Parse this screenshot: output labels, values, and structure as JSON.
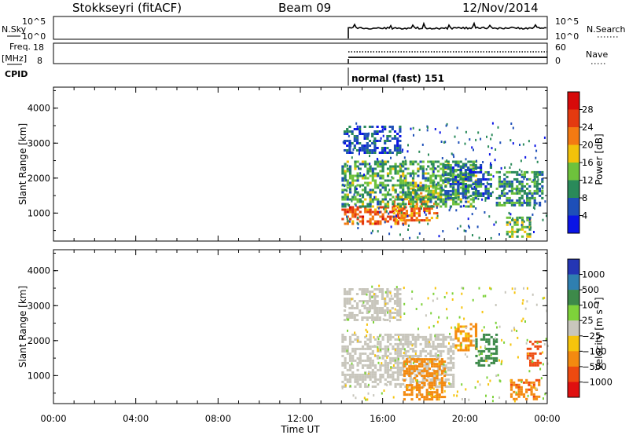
{
  "header": {
    "station": "Stokkseyri (fitACF)",
    "beam": "Beam 09",
    "date": "12/Nov/2014"
  },
  "strips": {
    "nsky_label": "N.Sky",
    "nsky_ticks": [
      "10^5",
      "10^0"
    ],
    "nsearch_label": "N.Search",
    "nsearch_ticks": [
      "10^5",
      "10^0"
    ],
    "freq_label": "Freq.",
    "freq_unit": "[MHz]",
    "freq_ticks": [
      "18",
      "8"
    ],
    "nave_label": "Nave",
    "nave_ticks": [
      "60",
      "0"
    ],
    "cpid_label": "CPID",
    "cpid_text": "normal (fast) 151"
  },
  "axes": {
    "xlabel": "Time UT",
    "ylabel": "Slant Range [km]",
    "x_ticks": [
      "00:00",
      "04:00",
      "08:00",
      "12:00",
      "16:00",
      "20:00",
      "00:00"
    ],
    "y_ticks": [
      "1000",
      "2000",
      "3000",
      "4000"
    ]
  },
  "power_scale": {
    "label": "Power [dB]",
    "ticks": [
      "4",
      "8",
      "12",
      "16",
      "20",
      "24",
      "28"
    ],
    "colors": [
      "#0a14e6",
      "#1e4fb8",
      "#2a8a5a",
      "#6ec23c",
      "#f2c20a",
      "#f47a12",
      "#e43a10",
      "#d70a0a"
    ]
  },
  "velocity_scale": {
    "label": "Velocity [m s⁻¹]",
    "ticks": [
      "1000",
      "500",
      "100",
      "25",
      "−25",
      "−100",
      "−500",
      "−1000"
    ],
    "colors": [
      "#2436b4",
      "#2f7fb0",
      "#3d8a4a",
      "#7ed23a",
      "#c8c6bc",
      "#f6c40c",
      "#f48a10",
      "#ee4a10",
      "#e01010"
    ]
  },
  "chart_data": [
    {
      "type": "heatmap",
      "title": "Power",
      "xlabel": "Time UT",
      "ylabel": "Slant Range [km]",
      "xlim": [
        0,
        24
      ],
      "ylim": [
        200,
        4600
      ],
      "colorbar": {
        "label": "Power [dB]",
        "ticks": [
          4,
          8,
          12,
          16,
          20,
          24,
          28
        ]
      },
      "data_start_hour": 14.0,
      "regions": [
        {
          "t0": 14.0,
          "t1": 17.3,
          "r0": 700,
          "r1": 1200,
          "value": 24
        },
        {
          "t0": 16.5,
          "t1": 18.7,
          "r0": 800,
          "r1": 1500,
          "value": 22
        },
        {
          "t0": 17.2,
          "t1": 18.8,
          "r0": 1400,
          "r1": 1800,
          "value": 16
        },
        {
          "t0": 14.0,
          "t1": 20.5,
          "r0": 1200,
          "r1": 2500,
          "value": 12
        },
        {
          "t0": 14.1,
          "t1": 16.8,
          "r0": 2700,
          "r1": 3500,
          "value": 6
        },
        {
          "t0": 19.0,
          "t1": 21.3,
          "r0": 1400,
          "r1": 2400,
          "value": 8
        },
        {
          "t0": 22.0,
          "t1": 23.2,
          "r0": 300,
          "r1": 900,
          "value": 14
        },
        {
          "t0": 21.5,
          "t1": 23.8,
          "r0": 1200,
          "r1": 2200,
          "value": 10
        }
      ]
    },
    {
      "type": "heatmap",
      "title": "Velocity",
      "xlabel": "Time UT",
      "ylabel": "Slant Range [km]",
      "xlim": [
        0,
        24
      ],
      "ylim": [
        200,
        4600
      ],
      "colorbar": {
        "label": "Velocity [m s⁻¹]",
        "ticks": [
          1000,
          500,
          100,
          25,
          -25,
          -100,
          -500,
          -1000
        ]
      },
      "data_start_hour": 14.0,
      "regions": [
        {
          "t0": 14.0,
          "t1": 19.5,
          "r0": 700,
          "r1": 2200,
          "value": 0
        },
        {
          "t0": 14.1,
          "t1": 16.8,
          "r0": 2600,
          "r1": 3500,
          "value": 0
        },
        {
          "t0": 17.0,
          "t1": 19.0,
          "r0": 300,
          "r1": 1500,
          "value": -300
        },
        {
          "t0": 19.5,
          "t1": 20.6,
          "r0": 1700,
          "r1": 2500,
          "value": -200
        },
        {
          "t0": 20.5,
          "t1": 21.5,
          "r0": 1300,
          "r1": 2200,
          "value": 300
        },
        {
          "t0": 22.2,
          "t1": 23.6,
          "r0": 300,
          "r1": 900,
          "value": -400
        },
        {
          "t0": 23.0,
          "t1": 23.7,
          "r0": 1300,
          "r1": 2000,
          "value": -700
        }
      ]
    }
  ]
}
